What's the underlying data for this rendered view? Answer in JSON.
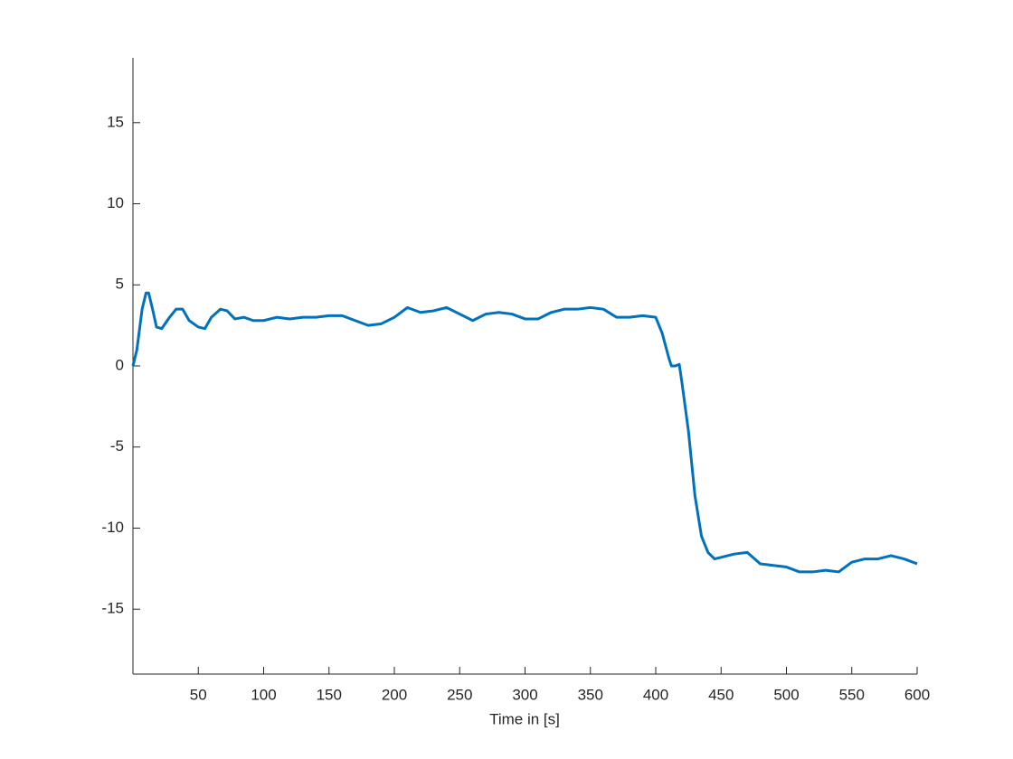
{
  "chart_data": {
    "type": "line",
    "xlabel": "Time in [s]",
    "x": [
      0,
      3,
      7,
      10,
      12,
      15,
      18,
      22,
      28,
      33,
      38,
      43,
      50,
      55,
      60,
      67,
      72,
      78,
      85,
      92,
      100,
      110,
      120,
      130,
      140,
      150,
      160,
      170,
      180,
      190,
      200,
      210,
      220,
      230,
      240,
      250,
      260,
      270,
      280,
      290,
      300,
      310,
      320,
      330,
      340,
      350,
      360,
      370,
      380,
      390,
      400,
      405,
      410,
      412,
      415,
      418,
      420,
      425,
      430,
      435,
      440,
      445,
      450,
      460,
      470,
      480,
      490,
      500,
      510,
      520,
      530,
      540,
      550,
      560,
      570,
      580,
      590,
      600
    ],
    "values": [
      0,
      1,
      3.5,
      4.5,
      4.5,
      3.5,
      2.4,
      2.3,
      3.0,
      3.5,
      3.5,
      2.8,
      2.4,
      2.3,
      3.0,
      3.5,
      3.4,
      2.9,
      3.0,
      2.8,
      2.8,
      3.0,
      2.9,
      3.0,
      3.0,
      3.1,
      3.1,
      2.8,
      2.5,
      2.6,
      3.0,
      3.6,
      3.3,
      3.4,
      3.6,
      3.2,
      2.8,
      3.2,
      3.3,
      3.2,
      2.9,
      2.9,
      3.3,
      3.5,
      3.5,
      3.6,
      3.5,
      3.0,
      3.0,
      3.1,
      3.0,
      2.0,
      0.5,
      0,
      0,
      0.1,
      -1,
      -4,
      -8,
      -10.5,
      -11.5,
      -11.9,
      -11.8,
      -11.6,
      -11.5,
      -12.2,
      -12.3,
      -12.4,
      -12.7,
      -12.7,
      -12.6,
      -12.7,
      -12.1,
      -11.9,
      -11.9,
      -11.7,
      -11.9,
      -12.2
    ],
    "color": "#0072BD",
    "xlim": [
      0,
      600
    ],
    "xticks": [
      50,
      100,
      150,
      200,
      250,
      300,
      350,
      400,
      450,
      500,
      550,
      600
    ],
    "ylim": [
      -19,
      19
    ],
    "yticks": [
      -15,
      -10,
      -5,
      0,
      5,
      10,
      15
    ]
  }
}
